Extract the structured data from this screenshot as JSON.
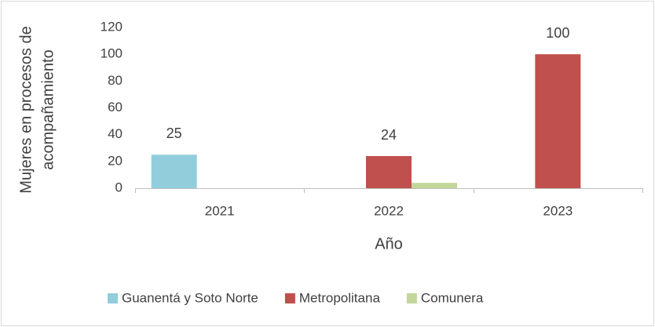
{
  "chart_data": {
    "type": "bar",
    "xlabel": "Año",
    "ylabel": [
      "Mujeres en procesos de",
      "acompañamiento"
    ],
    "categories": [
      "2021",
      "2022",
      "2023"
    ],
    "series": [
      {
        "name": "Guanentá y Soto Norte",
        "color": "#92cddc",
        "values": [
          25,
          null,
          null
        ],
        "show_labels": true
      },
      {
        "name": "Metropolitana",
        "color": "#c0504d",
        "values": [
          null,
          24,
          100
        ],
        "show_labels": true
      },
      {
        "name": "Comunera",
        "color": "#c3d69b",
        "values": [
          null,
          4,
          null
        ],
        "show_labels": false
      }
    ],
    "ylim": [
      0,
      120
    ],
    "yticks": [
      0,
      20,
      40,
      60,
      80,
      100,
      120
    ],
    "grid": false,
    "legend": "bottom"
  }
}
